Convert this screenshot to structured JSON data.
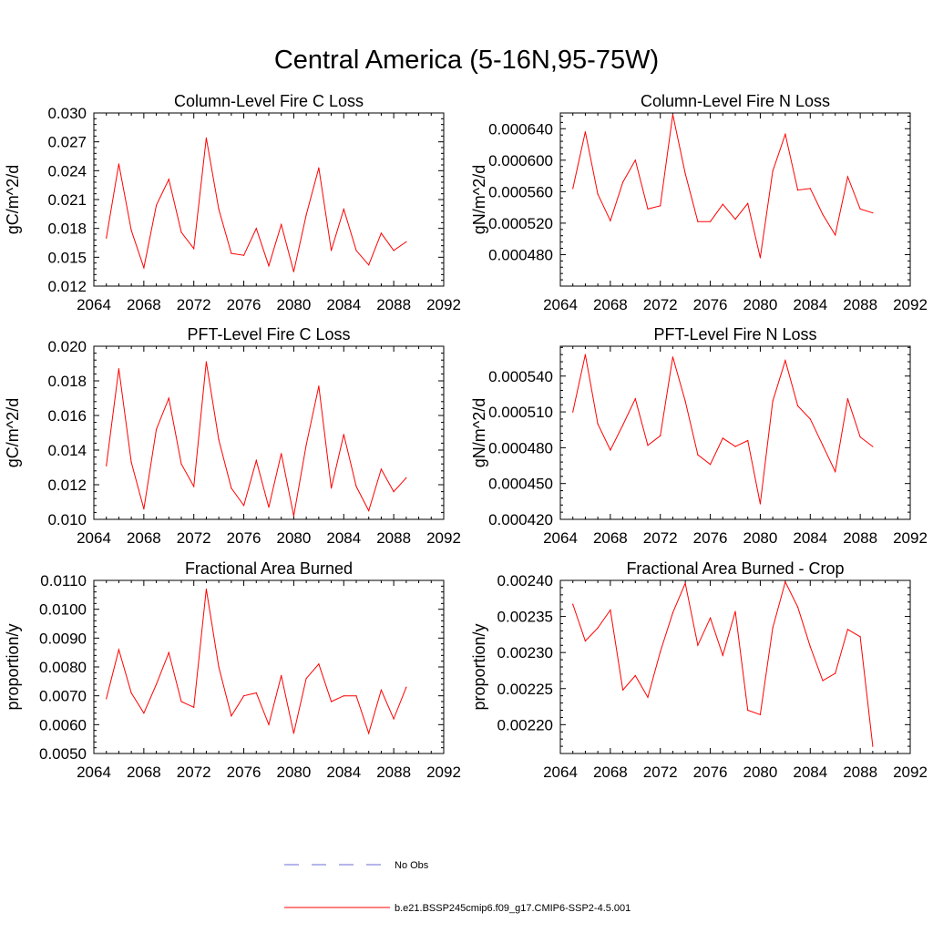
{
  "figure": {
    "title": "Central America (5-16N,95-75W)"
  },
  "legend": {
    "items": [
      {
        "label": "No Obs",
        "color": "#6b6bd6",
        "style": "dashed"
      },
      {
        "label": "b.e21.BSSP245cmip6.f09_g17.CMIP6-SSP2-4.5.001",
        "color": "#ff0000",
        "style": "solid"
      }
    ]
  },
  "chart_data": [
    {
      "type": "line",
      "title": "Column-Level Fire C Loss",
      "ylabel": "gC/m^2/d",
      "xlim": [
        2064,
        2092
      ],
      "ylim": [
        0.012,
        0.03
      ],
      "xticks": [
        "2064",
        "2068",
        "2072",
        "2076",
        "2080",
        "2084",
        "2088",
        "2092"
      ],
      "yticks": [
        "0.012",
        "0.015",
        "0.018",
        "0.021",
        "0.024",
        "0.027",
        "0.030"
      ],
      "grid": false,
      "series": [
        {
          "color": "#ff0000",
          "x": [
            2065,
            2066,
            2067,
            2068,
            2069,
            2070,
            2071,
            2072,
            2073,
            2074,
            2075,
            2076,
            2077,
            2078,
            2079,
            2080,
            2081,
            2082,
            2083,
            2084,
            2085,
            2086,
            2087,
            2088,
            2089
          ],
          "values": [
            0.017,
            0.0247,
            0.0178,
            0.0139,
            0.0204,
            0.0231,
            0.0176,
            0.0159,
            0.0274,
            0.02,
            0.0154,
            0.0152,
            0.018,
            0.0141,
            0.0184,
            0.0135,
            0.0194,
            0.0243,
            0.0157,
            0.02,
            0.0157,
            0.0142,
            0.0175,
            0.0157,
            0.0166
          ]
        }
      ]
    },
    {
      "type": "line",
      "title": "Column-Level Fire N Loss",
      "ylabel": "gN/m^2/d",
      "xlim": [
        2064,
        2092
      ],
      "ylim": [
        0.00044,
        0.00066
      ],
      "xticks": [
        "2064",
        "2068",
        "2072",
        "2076",
        "2080",
        "2084",
        "2088",
        "2092"
      ],
      "yticks": [
        "0.000480",
        "0.000520",
        "0.000560",
        "0.000600",
        "0.000640"
      ],
      "grid": false,
      "series": [
        {
          "color": "#ff0000",
          "x": [
            2065,
            2066,
            2067,
            2068,
            2069,
            2070,
            2071,
            2072,
            2073,
            2074,
            2075,
            2076,
            2077,
            2078,
            2079,
            2080,
            2081,
            2082,
            2083,
            2084,
            2085,
            2086,
            2087,
            2088,
            2089
          ],
          "values": [
            0.000564,
            0.000636,
            0.000557,
            0.000523,
            0.000572,
            0.0006,
            0.000538,
            0.000542,
            0.000658,
            0.000583,
            0.000522,
            0.000522,
            0.000544,
            0.000525,
            0.000545,
            0.000476,
            0.000586,
            0.000633,
            0.000562,
            0.000564,
            0.000531,
            0.000505,
            0.000579,
            0.000538,
            0.000533
          ]
        }
      ]
    },
    {
      "type": "line",
      "title": "PFT-Level Fire C Loss",
      "ylabel": "gC/m^2/d",
      "xlim": [
        2064,
        2092
      ],
      "ylim": [
        0.01,
        0.02
      ],
      "xticks": [
        "2064",
        "2068",
        "2072",
        "2076",
        "2080",
        "2084",
        "2088",
        "2092"
      ],
      "yticks": [
        "0.010",
        "0.012",
        "0.014",
        "0.016",
        "0.018",
        "0.020"
      ],
      "grid": false,
      "series": [
        {
          "color": "#ff0000",
          "x": [
            2065,
            2066,
            2067,
            2068,
            2069,
            2070,
            2071,
            2072,
            2073,
            2074,
            2075,
            2076,
            2077,
            2078,
            2079,
            2080,
            2081,
            2082,
            2083,
            2084,
            2085,
            2086,
            2087,
            2088,
            2089
          ],
          "values": [
            0.0131,
            0.0187,
            0.0133,
            0.0106,
            0.0152,
            0.017,
            0.0132,
            0.0119,
            0.0191,
            0.0146,
            0.0118,
            0.0108,
            0.0134,
            0.0107,
            0.0138,
            0.0102,
            0.0143,
            0.0177,
            0.0118,
            0.0149,
            0.0119,
            0.0105,
            0.0129,
            0.0116,
            0.0124
          ]
        }
      ]
    },
    {
      "type": "line",
      "title": "PFT-Level Fire N Loss",
      "ylabel": "gN/m^2/d",
      "xlim": [
        2064,
        2092
      ],
      "ylim": [
        0.00042,
        0.000565
      ],
      "xticks": [
        "2064",
        "2068",
        "2072",
        "2076",
        "2080",
        "2084",
        "2088",
        "2092"
      ],
      "yticks": [
        "0.000420",
        "0.000450",
        "0.000480",
        "0.000510",
        "0.000540"
      ],
      "grid": false,
      "series": [
        {
          "color": "#ff0000",
          "x": [
            2065,
            2066,
            2067,
            2068,
            2069,
            2070,
            2071,
            2072,
            2073,
            2074,
            2075,
            2076,
            2077,
            2078,
            2079,
            2080,
            2081,
            2082,
            2083,
            2084,
            2085,
            2086,
            2087,
            2088,
            2089
          ],
          "values": [
            0.00051,
            0.000558,
            0.0005,
            0.000478,
            0.000499,
            0.000521,
            0.000482,
            0.00049,
            0.000556,
            0.000519,
            0.000474,
            0.000466,
            0.000488,
            0.000481,
            0.000486,
            0.000433,
            0.000519,
            0.000553,
            0.000515,
            0.000504,
            0.000482,
            0.00046,
            0.000521,
            0.000489,
            0.000481
          ]
        }
      ]
    },
    {
      "type": "line",
      "title": "Fractional Area Burned",
      "ylabel": "proportion/y",
      "xlim": [
        2064,
        2092
      ],
      "ylim": [
        0.005,
        0.011
      ],
      "xticks": [
        "2064",
        "2068",
        "2072",
        "2076",
        "2080",
        "2084",
        "2088",
        "2092"
      ],
      "yticks": [
        "0.0050",
        "0.0060",
        "0.0070",
        "0.0080",
        "0.0090",
        "0.0100",
        "0.0110"
      ],
      "grid": false,
      "series": [
        {
          "color": "#ff0000",
          "x": [
            2065,
            2066,
            2067,
            2068,
            2069,
            2070,
            2071,
            2072,
            2073,
            2074,
            2075,
            2076,
            2077,
            2078,
            2079,
            2080,
            2081,
            2082,
            2083,
            2084,
            2085,
            2086,
            2087,
            2088,
            2089
          ],
          "values": [
            0.0069,
            0.0086,
            0.0071,
            0.0064,
            0.0074,
            0.0085,
            0.0068,
            0.0066,
            0.0107,
            0.008,
            0.0063,
            0.007,
            0.0071,
            0.006,
            0.0077,
            0.0057,
            0.0076,
            0.0081,
            0.0068,
            0.007,
            0.007,
            0.0057,
            0.0072,
            0.0062,
            0.0073
          ]
        }
      ]
    },
    {
      "type": "line",
      "title": "Fractional Area Burned - Crop",
      "ylabel": "proportion/y",
      "xlim": [
        2064,
        2092
      ],
      "ylim": [
        0.00216,
        0.0024
      ],
      "xticks": [
        "2064",
        "2068",
        "2072",
        "2076",
        "2080",
        "2084",
        "2088",
        "2092"
      ],
      "yticks": [
        "0.00220",
        "0.00225",
        "0.00230",
        "0.00235",
        "0.00240"
      ],
      "grid": false,
      "series": [
        {
          "color": "#ff0000",
          "x": [
            2065,
            2066,
            2067,
            2068,
            2069,
            2070,
            2071,
            2072,
            2073,
            2074,
            2075,
            2076,
            2077,
            2078,
            2079,
            2080,
            2081,
            2082,
            2083,
            2084,
            2085,
            2086,
            2087,
            2088,
            2089
          ],
          "values": [
            0.002367,
            0.002316,
            0.002334,
            0.002359,
            0.002248,
            0.002268,
            0.002238,
            0.002301,
            0.002355,
            0.002396,
            0.00231,
            0.002348,
            0.002296,
            0.002357,
            0.00222,
            0.002214,
            0.002334,
            0.002398,
            0.002363,
            0.002308,
            0.002261,
            0.002271,
            0.002332,
            0.002322,
            0.00217
          ]
        }
      ]
    }
  ]
}
